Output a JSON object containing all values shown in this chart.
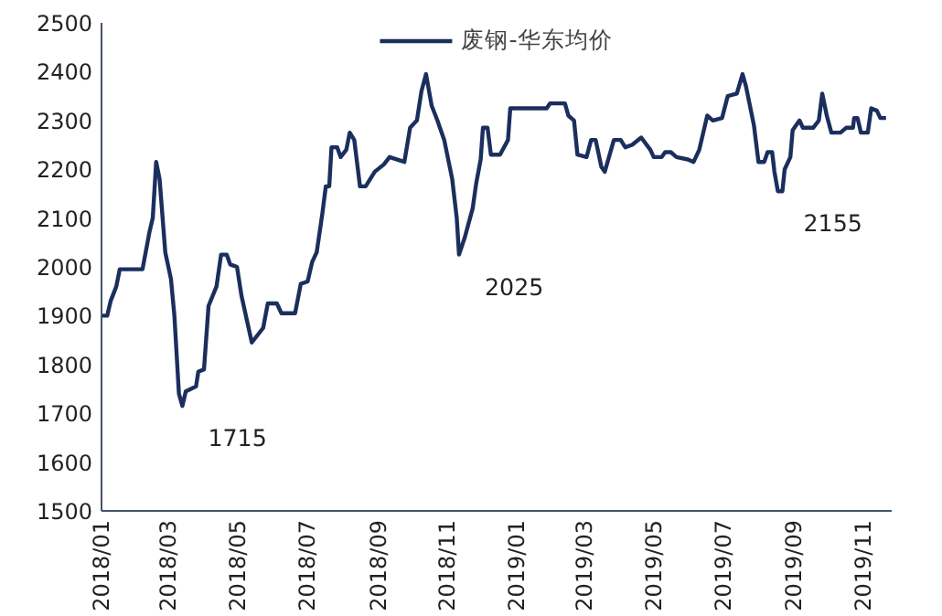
{
  "chart_data": {
    "type": "line",
    "x": [
      "2018-01-01",
      "2018-01-06",
      "2018-01-09",
      "2018-01-14",
      "2018-01-17",
      "2018-02-06",
      "2018-02-12",
      "2018-02-15",
      "2018-02-18",
      "2018-02-21",
      "2018-02-26",
      "2018-03-03",
      "2018-03-06",
      "2018-03-10",
      "2018-03-13",
      "2018-03-16",
      "2018-03-25",
      "2018-03-27",
      "2018-04-01",
      "2018-04-05",
      "2018-04-12",
      "2018-04-16",
      "2018-04-21",
      "2018-04-24",
      "2018-04-30",
      "2018-05-04",
      "2018-05-13",
      "2018-05-18",
      "2018-05-23",
      "2018-05-27",
      "2018-06-04",
      "2018-06-08",
      "2018-06-20",
      "2018-06-25",
      "2018-07-01",
      "2018-07-05",
      "2018-07-09",
      "2018-07-14",
      "2018-07-17",
      "2018-07-20",
      "2018-07-22",
      "2018-07-27",
      "2018-07-30",
      "2018-08-04",
      "2018-08-07",
      "2018-08-11",
      "2018-08-16",
      "2018-08-21",
      "2018-08-29",
      "2018-09-06",
      "2018-09-11",
      "2018-09-24",
      "2018-09-29",
      "2018-10-05",
      "2018-10-09",
      "2018-10-13",
      "2018-10-18",
      "2018-10-23",
      "2018-10-29",
      "2018-11-05",
      "2018-11-09",
      "2018-11-11",
      "2018-11-16",
      "2018-11-23",
      "2018-11-26",
      "2018-11-30",
      "2018-12-02",
      "2018-12-06",
      "2018-12-09",
      "2018-12-17",
      "2018-12-24",
      "2018-12-26",
      "2019-01-27",
      "2019-01-30",
      "2019-02-12",
      "2019-02-15",
      "2019-02-20",
      "2019-02-23",
      "2019-03-03",
      "2019-03-07",
      "2019-03-11",
      "2019-03-16",
      "2019-03-19",
      "2019-03-27",
      "2019-04-02",
      "2019-04-06",
      "2019-04-12",
      "2019-04-20",
      "2019-04-28",
      "2019-05-01",
      "2019-05-08",
      "2019-05-11",
      "2019-05-16",
      "2019-05-21",
      "2019-05-31",
      "2019-06-05",
      "2019-06-10",
      "2019-06-17",
      "2019-06-22",
      "2019-06-30",
      "2019-07-05",
      "2019-07-13",
      "2019-07-18",
      "2019-07-21",
      "2019-07-28",
      "2019-08-01",
      "2019-08-06",
      "2019-08-09",
      "2019-08-13",
      "2019-08-15",
      "2019-08-18",
      "2019-08-22",
      "2019-08-24",
      "2019-08-29",
      "2019-08-31",
      "2019-09-06",
      "2019-09-09",
      "2019-09-18",
      "2019-09-23",
      "2019-09-26",
      "2019-09-30",
      "2019-10-04",
      "2019-10-12",
      "2019-10-17",
      "2019-10-23",
      "2019-10-24",
      "2019-10-27",
      "2019-10-30",
      "2019-11-05",
      "2019-11-08",
      "2019-11-13",
      "2019-11-16",
      "2019-11-21"
    ],
    "series": [
      {
        "name": "废钢-华东均价",
        "color": "#1b2f5e",
        "values": [
          1900,
          1900,
          1930,
          1960,
          1995,
          1995,
          2070,
          2100,
          2215,
          2180,
          2030,
          1975,
          1900,
          1740,
          1715,
          1745,
          1755,
          1785,
          1790,
          1920,
          1960,
          2025,
          2025,
          2005,
          2000,
          1940,
          1845,
          1860,
          1875,
          1925,
          1925,
          1905,
          1905,
          1965,
          1970,
          2010,
          2030,
          2110,
          2165,
          2165,
          2245,
          2245,
          2225,
          2240,
          2275,
          2260,
          2165,
          2165,
          2195,
          2210,
          2225,
          2215,
          2285,
          2300,
          2360,
          2395,
          2330,
          2300,
          2260,
          2180,
          2100,
          2025,
          2060,
          2120,
          2170,
          2220,
          2285,
          2285,
          2230,
          2230,
          2260,
          2325,
          2325,
          2335,
          2335,
          2310,
          2300,
          2230,
          2225,
          2260,
          2260,
          2205,
          2195,
          2260,
          2260,
          2245,
          2250,
          2265,
          2240,
          2225,
          2225,
          2235,
          2235,
          2225,
          2220,
          2215,
          2240,
          2310,
          2300,
          2305,
          2350,
          2355,
          2395,
          2370,
          2290,
          2215,
          2215,
          2235,
          2235,
          2195,
          2155,
          2155,
          2200,
          2225,
          2280,
          2300,
          2285,
          2285,
          2300,
          2355,
          2310,
          2275,
          2275,
          2285,
          2285,
          2305,
          2305,
          2275,
          2275,
          2325,
          2320,
          2305,
          2305
        ]
      }
    ],
    "xlim": [
      "2018-01-01",
      "2019-11-26"
    ],
    "xticks": [
      {
        "value": "2018-01-01",
        "label": "2018/01"
      },
      {
        "value": "2018-03-01",
        "label": "2018/03"
      },
      {
        "value": "2018-05-01",
        "label": "2018/05"
      },
      {
        "value": "2018-07-01",
        "label": "2018/07"
      },
      {
        "value": "2018-09-01",
        "label": "2018/09"
      },
      {
        "value": "2018-11-01",
        "label": "2018/11"
      },
      {
        "value": "2019-01-01",
        "label": "2019/01"
      },
      {
        "value": "2019-03-01",
        "label": "2019/03"
      },
      {
        "value": "2019-05-01",
        "label": "2019/05"
      },
      {
        "value": "2019-07-01",
        "label": "2019/07"
      },
      {
        "value": "2019-09-01",
        "label": "2019/09"
      },
      {
        "value": "2019-11-01",
        "label": "2019/11"
      }
    ],
    "ylim": [
      1500,
      2500
    ],
    "yticks": [
      1500,
      1600,
      1700,
      1800,
      1900,
      2000,
      2100,
      2200,
      2300,
      2400,
      2500
    ],
    "annotations": [
      {
        "text": "1715",
        "x": "2018-03-13",
        "y": 1715
      },
      {
        "text": "2025",
        "x": "2018-11-11",
        "y": 2025
      },
      {
        "text": "2155",
        "x": "2019-08-18",
        "y": 2155
      }
    ],
    "legend": "top",
    "grid": false,
    "line_style": "solid",
    "marker": "none"
  }
}
